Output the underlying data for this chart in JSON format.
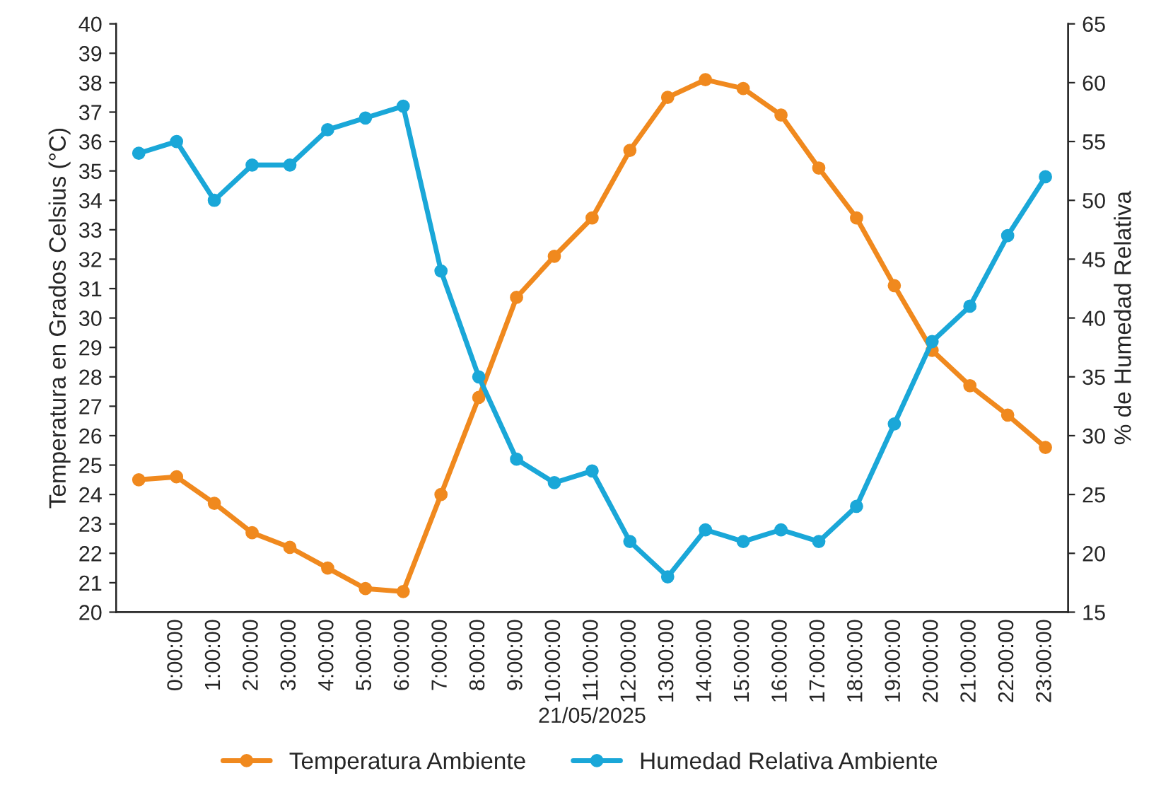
{
  "chart_data": {
    "type": "line",
    "xlabel": "21/05/2025",
    "ylabel": "Temperatura en Grados Celsius (°C)",
    "y2label": "% de Humedad Relativa",
    "categories": [
      null,
      "0:00:00",
      "1:00:00",
      "2:00:00",
      "3:00:00",
      "4:00:00",
      "5:00:00",
      "6:00:00",
      "7:00:00",
      "8:00:00",
      "9:00:00",
      "10:00:00",
      "11:00:00",
      "12:00:00",
      "13:00:00",
      "14:00:00",
      "15:00:00",
      "16:00:00",
      "17:00:00",
      "18:00:00",
      "19:00:00",
      "20:00:00",
      "21:00:00",
      "22:00:00",
      "23:00:00"
    ],
    "series": [
      {
        "name": "Temperatura Ambiente",
        "color": "#f0891e",
        "values": [
          24.5,
          24.6,
          23.7,
          22.7,
          22.2,
          21.5,
          20.8,
          20.7,
          24.0,
          27.3,
          30.7,
          32.1,
          33.4,
          35.7,
          37.5,
          38.1,
          37.8,
          36.9,
          35.1,
          33.4,
          31.1,
          28.9,
          27.7,
          26.7,
          25.6
        ]
      },
      {
        "name": "Humedad Relativa Ambiente",
        "color": "#1aa7d8",
        "axis": "y2",
        "values": [
          54,
          55,
          50,
          53,
          53,
          56,
          57,
          58,
          44,
          35,
          28,
          26,
          27,
          21,
          18,
          22,
          21,
          22,
          21,
          24,
          31,
          38,
          41,
          47,
          52
        ]
      }
    ],
    "ylim": [
      20,
      40
    ],
    "yticks": [
      20,
      21,
      22,
      23,
      24,
      25,
      26,
      27,
      28,
      29,
      30,
      31,
      32,
      33,
      34,
      35,
      36,
      37,
      38,
      39,
      40
    ],
    "y2lim": [
      15,
      65
    ],
    "y2ticks": [
      15,
      20,
      25,
      30,
      35,
      40,
      45,
      50,
      55,
      60,
      65
    ],
    "grid": false,
    "legend": "bottom",
    "marker": "circle",
    "line_style": "solid"
  }
}
